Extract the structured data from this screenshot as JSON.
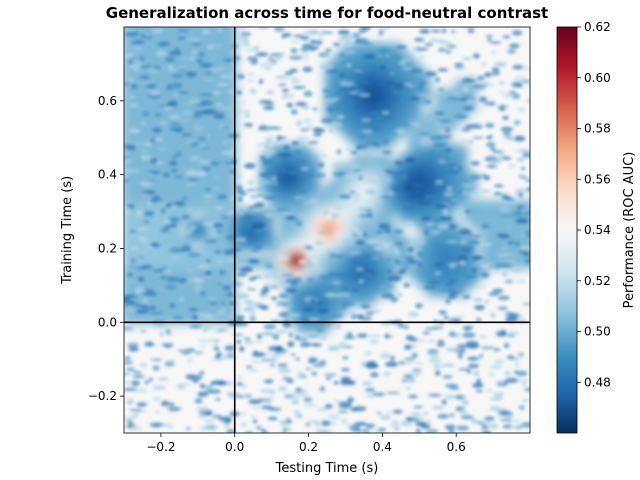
{
  "chart_data": {
    "type": "heatmap",
    "title": "Generalization across time for food-neutral contrast",
    "xlabel": "Testing Time (s)",
    "ylabel": "Training Time (s)",
    "colorbar_label": "Performance (ROC AUC)",
    "colormap": "RdBu_r",
    "xlim": [
      -0.3,
      0.8
    ],
    "ylim": [
      -0.3,
      0.8
    ],
    "x_ticks": [
      -0.2,
      0.0,
      0.2,
      0.4,
      0.6
    ],
    "x_tick_labels": [
      "−0.2",
      "0.0",
      "0.2",
      "0.4",
      "0.6"
    ],
    "y_ticks": [
      -0.2,
      0.0,
      0.2,
      0.4,
      0.6
    ],
    "y_tick_labels": [
      "−0.2",
      "0.0",
      "0.2",
      "0.4",
      "0.6"
    ],
    "reference_lines": {
      "x": 0.0,
      "y": 0.0
    },
    "color_range": [
      0.46,
      0.62
    ],
    "colorbar_ticks": [
      0.48,
      0.5,
      0.52,
      0.54,
      0.56,
      0.58,
      0.6,
      0.62
    ],
    "colorbar_tick_labels": [
      "0.48",
      "0.50",
      "0.52",
      "0.54",
      "0.56",
      "0.58",
      "0.60",
      "0.62"
    ],
    "features": {
      "baseline_auc": 0.5,
      "diagonal_peak": {
        "train_time": 0.17,
        "test_time": 0.17,
        "auc": 0.61
      },
      "secondary_peak": {
        "train_time": 0.26,
        "test_time": 0.26,
        "auc": 0.58
      },
      "diagonal_extent": [
        0.12,
        0.65
      ],
      "below_chance_region_auc": 0.47
    }
  },
  "colors": {
    "cmap_stops": [
      "#053061",
      "#2166ac",
      "#4393c3",
      "#92c5de",
      "#d1e5f0",
      "#f7f7f7",
      "#fddbc7",
      "#f4a582",
      "#d6604d",
      "#b2182b",
      "#67001f"
    ],
    "reference_line": "#000000"
  }
}
